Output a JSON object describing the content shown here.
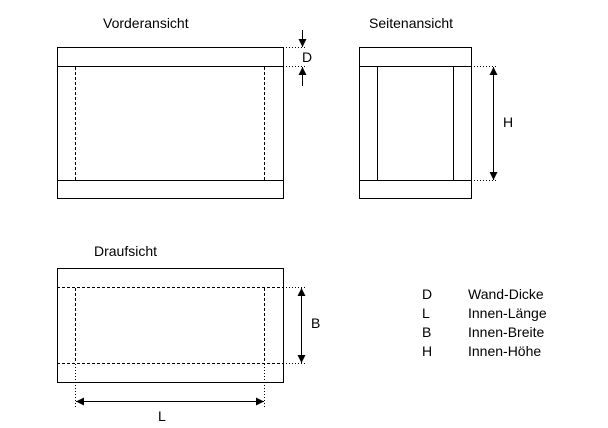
{
  "views": {
    "front_title": "Vorderansicht",
    "side_title": "Seitenansicht",
    "top_title": "Draufsicht"
  },
  "dimensions": {
    "d": "D",
    "h": "H",
    "b": "B",
    "l": "L"
  },
  "legend": [
    {
      "symbol": "D",
      "text": "Wand-Dicke"
    },
    {
      "symbol": "L",
      "text": "Innen-Länge"
    },
    {
      "symbol": "B",
      "text": "Innen-Breite"
    },
    {
      "symbol": "H",
      "text": "Innen-Höhe"
    }
  ]
}
